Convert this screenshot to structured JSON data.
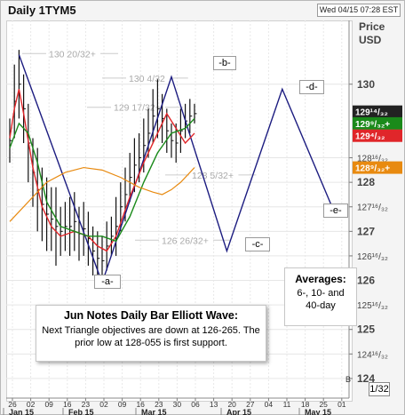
{
  "header": {
    "title": "Daily 1TYM5",
    "timestamp": "Wed 04/15 07:28 EST",
    "price_label": "Price",
    "currency_label": "USD"
  },
  "colors": {
    "sma6": "#e0262a",
    "sma10": "#1a8a1a",
    "sma40": "#e88a10",
    "wave": "#1c1c80",
    "bars": "#111111",
    "tag_last": "#222222",
    "tag_green": "#1a8a1a",
    "tag_red": "#e0262a",
    "tag_orange": "#e88a10"
  },
  "chart_data": {
    "type": "line",
    "xlabel": "",
    "ylabel": "Price USD",
    "ylim": [
      123.6,
      131.3
    ],
    "x_ticks": [
      "26",
      "02",
      "09",
      "16",
      "23",
      "02",
      "09",
      "16",
      "23",
      "30",
      "06",
      "13",
      "20",
      "27",
      "04",
      "11",
      "18",
      "25",
      "01"
    ],
    "x_months": [
      "Jan 15",
      "Feb 15",
      "Mar 15",
      "Apr 15",
      "May 15"
    ],
    "y_ticks": [
      {
        "value": 130,
        "label": "130"
      },
      {
        "value": 128.5,
        "label": "128¹⁶/₃₂"
      },
      {
        "value": 128,
        "label": "128"
      },
      {
        "value": 127.5,
        "label": "127¹⁶/₃₂"
      },
      {
        "value": 127,
        "label": "127"
      },
      {
        "value": 126.5,
        "label": "126¹⁶/₃₂"
      },
      {
        "value": 126,
        "label": "126"
      },
      {
        "value": 125.5,
        "label": "125¹⁶/₃₂"
      },
      {
        "value": 125,
        "label": "125"
      },
      {
        "value": 124.5,
        "label": "124¹⁶/₃₂"
      },
      {
        "value": 124,
        "label": "124"
      }
    ],
    "price_tags": [
      {
        "label": "129¹⁴/₃₂",
        "value": 129.44,
        "color": "#222222"
      },
      {
        "label": "129⁹/₃₂+",
        "value": 129.2,
        "color": "#1a8a1a"
      },
      {
        "label": "129⁴/₃₂",
        "value": 128.95,
        "color": "#e0262a"
      },
      {
        "label": "128⁹/₃₂+",
        "value": 128.3,
        "color": "#e88a10"
      }
    ],
    "levels": [
      {
        "value": 130.625,
        "label": "130 20/32+"
      },
      {
        "value": 130.125,
        "label": "130 4/32"
      },
      {
        "value": 129.53,
        "label": "129 17/32+"
      },
      {
        "value": 128.15,
        "label": "128 5/32+"
      },
      {
        "value": 126.82,
        "label": "126 26/32+"
      }
    ],
    "series": [
      {
        "name": "Elliott triangle",
        "points": [
          [
            2,
            130.6
          ],
          [
            20,
            125.95
          ],
          [
            35,
            130.15
          ],
          [
            47,
            126.6
          ],
          [
            59,
            129.9
          ],
          [
            70,
            127.45
          ]
        ]
      },
      {
        "name": "6-day",
        "points": [
          [
            0,
            128.9
          ],
          [
            1,
            129.5
          ],
          [
            2,
            129.9
          ],
          [
            3,
            129.4
          ],
          [
            5,
            128.3
          ],
          [
            7,
            127.5
          ],
          [
            9,
            127.1
          ],
          [
            11,
            126.9
          ],
          [
            14,
            127.0
          ],
          [
            17,
            126.9
          ],
          [
            19,
            126.7
          ],
          [
            21,
            126.6
          ],
          [
            23,
            126.9
          ],
          [
            26,
            127.7
          ],
          [
            29,
            128.4
          ],
          [
            32,
            129.0
          ],
          [
            34,
            129.4
          ],
          [
            36,
            129.1
          ],
          [
            38,
            128.8
          ],
          [
            39,
            128.9
          ],
          [
            40,
            129.0
          ]
        ]
      },
      {
        "name": "10-day",
        "points": [
          [
            0,
            128.7
          ],
          [
            2,
            129.2
          ],
          [
            4,
            129.0
          ],
          [
            6,
            128.4
          ],
          [
            8,
            127.6
          ],
          [
            11,
            127.1
          ],
          [
            14,
            127.0
          ],
          [
            17,
            126.9
          ],
          [
            20,
            126.9
          ],
          [
            23,
            126.8
          ],
          [
            26,
            127.3
          ],
          [
            29,
            128.0
          ],
          [
            32,
            128.6
          ],
          [
            35,
            129.0
          ],
          [
            38,
            129.1
          ],
          [
            40,
            129.3
          ]
        ]
      },
      {
        "name": "40-day",
        "points": [
          [
            0,
            127.2
          ],
          [
            4,
            127.6
          ],
          [
            8,
            128.0
          ],
          [
            12,
            128.2
          ],
          [
            16,
            128.3
          ],
          [
            20,
            128.25
          ],
          [
            24,
            128.1
          ],
          [
            28,
            127.9
          ],
          [
            31,
            127.8
          ],
          [
            33,
            127.75
          ],
          [
            35,
            127.85
          ],
          [
            37,
            128.0
          ],
          [
            40,
            128.3
          ]
        ]
      },
      {
        "name": "daily bars",
        "bars": [
          [
            0,
            128.4,
            129.3
          ],
          [
            1,
            128.9,
            130.4
          ],
          [
            2,
            129.3,
            130.7
          ],
          [
            3,
            128.8,
            130.2
          ],
          [
            4,
            128.0,
            129.6
          ],
          [
            5,
            127.5,
            128.9
          ],
          [
            6,
            127.0,
            128.7
          ],
          [
            7,
            126.8,
            128.3
          ],
          [
            8,
            126.6,
            128.1
          ],
          [
            9,
            126.6,
            127.9
          ],
          [
            10,
            126.3,
            127.9
          ],
          [
            11,
            126.5,
            127.5
          ],
          [
            12,
            126.6,
            127.6
          ],
          [
            13,
            126.5,
            127.7
          ],
          [
            14,
            126.6,
            127.8
          ],
          [
            15,
            126.4,
            127.5
          ],
          [
            16,
            126.5,
            127.6
          ],
          [
            17,
            126.3,
            127.4
          ],
          [
            18,
            126.1,
            127.1
          ],
          [
            19,
            125.9,
            127.0
          ],
          [
            20,
            125.9,
            126.9
          ],
          [
            21,
            126.2,
            127.2
          ],
          [
            22,
            126.5,
            127.3
          ],
          [
            23,
            126.5,
            127.7
          ],
          [
            24,
            127.0,
            128.0
          ],
          [
            25,
            127.2,
            128.3
          ],
          [
            26,
            127.6,
            128.6
          ],
          [
            27,
            127.8,
            128.9
          ],
          [
            28,
            128.0,
            129.0
          ],
          [
            29,
            128.2,
            129.3
          ],
          [
            30,
            128.5,
            129.5
          ],
          [
            31,
            128.8,
            129.9
          ],
          [
            32,
            128.9,
            130.1
          ],
          [
            33,
            128.8,
            129.8
          ],
          [
            34,
            128.6,
            129.5
          ],
          [
            35,
            128.5,
            129.2
          ],
          [
            36,
            128.4,
            129.2
          ],
          [
            37,
            128.6,
            129.5
          ],
          [
            38,
            128.9,
            129.6
          ],
          [
            39,
            129.0,
            129.7
          ],
          [
            40,
            129.2,
            129.6
          ]
        ]
      }
    ]
  },
  "wave_labels": [
    "-a-",
    "-b-",
    "-c-",
    "-d-",
    "-e-"
  ],
  "callout": {
    "title": "Jun Notes Daily Bar Elliott Wave:",
    "body": "Next Triangle objectives are down at 126-265. The prior low at 128-055 is first support."
  },
  "averages": {
    "title": "Averages:",
    "line1": "6-, 10- and",
    "line2": "40-day"
  },
  "footer": {
    "fraction": "1/32",
    "b_marker": "B"
  }
}
